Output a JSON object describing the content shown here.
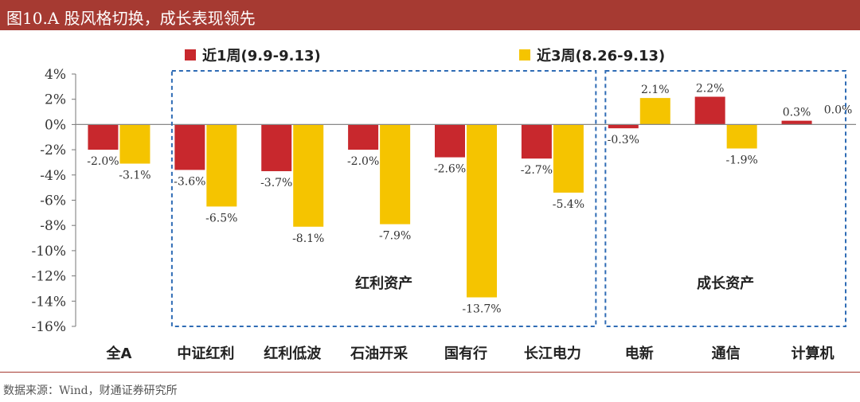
{
  "title": "图10.A 股风格切换，成长表现领先",
  "source": "数据来源：Wind，财通证券研究所",
  "colors": {
    "week1": "#c8282d",
    "week3": "#f5c400",
    "box": "#2f6cb5",
    "title_bg": "#a63a32"
  },
  "chart_data": {
    "type": "bar",
    "categories": [
      "全A",
      "中证红利",
      "红利低波",
      "石油开采",
      "国有行",
      "长江电力",
      "电新",
      "通信",
      "计算机"
    ],
    "series": [
      {
        "name": "近1周(9.9-9.13)",
        "values": [
          -2.0,
          -3.6,
          -3.7,
          -2.0,
          -2.6,
          -2.7,
          -0.3,
          2.2,
          0.3
        ],
        "labels": [
          "-2.0%",
          "-3.6%",
          "-3.7%",
          "-2.0%",
          "-2.6%",
          "-2.7%",
          "-0.3%",
          "2.2%",
          "0.3%"
        ]
      },
      {
        "name": "近3周(8.26-9.13)",
        "values": [
          -3.1,
          -6.5,
          -8.1,
          -7.9,
          -13.7,
          -5.4,
          2.1,
          -1.9,
          0.0
        ],
        "labels": [
          "-3.1%",
          "-6.5%",
          "-8.1%",
          "-7.9%",
          "-13.7%",
          "-5.4%",
          "2.1%",
          "-1.9%",
          "0.0%"
        ]
      }
    ],
    "yticks": [
      "4%",
      "2%",
      "0%",
      "-2%",
      "-4%",
      "-6%",
      "-8%",
      "-10%",
      "-12%",
      "-14%",
      "-16%"
    ],
    "ylim": [
      -16,
      4
    ],
    "groups": [
      {
        "label": "红利资产",
        "from": 1,
        "to": 5
      },
      {
        "label": "成长资产",
        "from": 6,
        "to": 8
      }
    ],
    "legend": "top"
  }
}
